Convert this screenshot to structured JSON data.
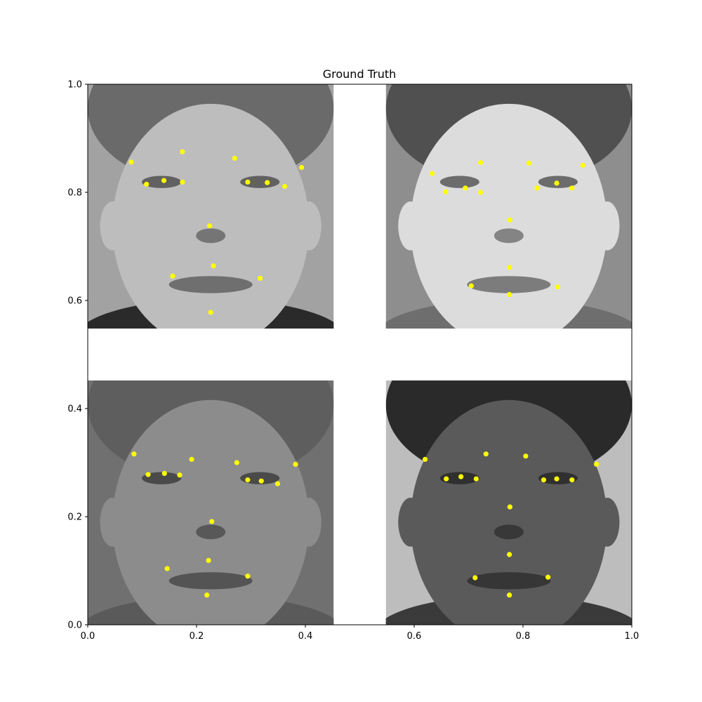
{
  "chart_data": {
    "type": "scatter",
    "title": "Ground Truth",
    "xlabel": "",
    "ylabel": "",
    "xlim": [
      0.0,
      1.0
    ],
    "ylim": [
      0.0,
      1.0
    ],
    "x_ticks": [
      "0.0",
      "0.2",
      "0.4",
      "0.6",
      "0.8",
      "1.0"
    ],
    "y_ticks": [
      "0.0",
      "0.2",
      "0.4",
      "0.6",
      "0.8",
      "1.0"
    ],
    "grid": false,
    "marker_color": "#ffff00",
    "panels": [
      {
        "name": "top-left-face",
        "xlim": [
          0.0,
          0.452
        ],
        "ylim": [
          0.548,
          1.0
        ],
        "palette": {
          "bg": "#a2a2a2",
          "skin": "#bdbdbd",
          "hair": "#6a6a6a",
          "feature": "#3a3a3a",
          "clothing": "#2a2a2a"
        },
        "points": [
          {
            "x": 0.08,
            "y": 0.856
          },
          {
            "x": 0.174,
            "y": 0.875
          },
          {
            "x": 0.108,
            "y": 0.815
          },
          {
            "x": 0.14,
            "y": 0.822
          },
          {
            "x": 0.174,
            "y": 0.819
          },
          {
            "x": 0.27,
            "y": 0.863
          },
          {
            "x": 0.393,
            "y": 0.846
          },
          {
            "x": 0.294,
            "y": 0.819
          },
          {
            "x": 0.33,
            "y": 0.818
          },
          {
            "x": 0.362,
            "y": 0.811
          },
          {
            "x": 0.224,
            "y": 0.738
          },
          {
            "x": 0.231,
            "y": 0.664
          },
          {
            "x": 0.156,
            "y": 0.645
          },
          {
            "x": 0.317,
            "y": 0.641
          },
          {
            "x": 0.226,
            "y": 0.578
          }
        ]
      },
      {
        "name": "top-right-face",
        "xlim": [
          0.548,
          1.0
        ],
        "ylim": [
          0.548,
          1.0
        ],
        "palette": {
          "bg": "#8e8e8e",
          "skin": "#dcdcdc",
          "hair": "#505050",
          "feature": "#3c3c3c",
          "clothing": "#6e6e6e"
        },
        "points": [
          {
            "x": 0.633,
            "y": 0.835
          },
          {
            "x": 0.722,
            "y": 0.855
          },
          {
            "x": 0.658,
            "y": 0.801
          },
          {
            "x": 0.694,
            "y": 0.808
          },
          {
            "x": 0.722,
            "y": 0.8
          },
          {
            "x": 0.811,
            "y": 0.854
          },
          {
            "x": 0.91,
            "y": 0.85
          },
          {
            "x": 0.826,
            "y": 0.808
          },
          {
            "x": 0.862,
            "y": 0.817
          },
          {
            "x": 0.89,
            "y": 0.808
          },
          {
            "x": 0.776,
            "y": 0.749
          },
          {
            "x": 0.775,
            "y": 0.661
          },
          {
            "x": 0.705,
            "y": 0.627
          },
          {
            "x": 0.864,
            "y": 0.625
          },
          {
            "x": 0.775,
            "y": 0.611
          }
        ]
      },
      {
        "name": "bottom-left-face",
        "xlim": [
          0.0,
          0.452
        ],
        "ylim": [
          0.0,
          0.452
        ],
        "palette": {
          "bg": "#707070",
          "skin": "#8c8c8c",
          "hair": "#5e5e5e",
          "feature": "#2e2e2e",
          "clothing": "#5a5a5a"
        },
        "points": [
          {
            "x": 0.085,
            "y": 0.316
          },
          {
            "x": 0.191,
            "y": 0.306
          },
          {
            "x": 0.111,
            "y": 0.278
          },
          {
            "x": 0.141,
            "y": 0.28
          },
          {
            "x": 0.169,
            "y": 0.277
          },
          {
            "x": 0.274,
            "y": 0.3
          },
          {
            "x": 0.382,
            "y": 0.297
          },
          {
            "x": 0.294,
            "y": 0.268
          },
          {
            "x": 0.319,
            "y": 0.266
          },
          {
            "x": 0.349,
            "y": 0.261
          },
          {
            "x": 0.228,
            "y": 0.191
          },
          {
            "x": 0.222,
            "y": 0.119
          },
          {
            "x": 0.146,
            "y": 0.104
          },
          {
            "x": 0.294,
            "y": 0.09
          },
          {
            "x": 0.219,
            "y": 0.055
          }
        ]
      },
      {
        "name": "bottom-right-face",
        "xlim": [
          0.548,
          1.0
        ],
        "ylim": [
          0.0,
          0.452
        ],
        "palette": {
          "bg": "#bdbdbd",
          "skin": "#5a5a5a",
          "hair": "#2a2a2a",
          "feature": "#1e1e1e",
          "clothing": "#3a3a3a"
        },
        "points": [
          {
            "x": 0.62,
            "y": 0.306
          },
          {
            "x": 0.732,
            "y": 0.316
          },
          {
            "x": 0.659,
            "y": 0.27
          },
          {
            "x": 0.686,
            "y": 0.274
          },
          {
            "x": 0.714,
            "y": 0.27
          },
          {
            "x": 0.805,
            "y": 0.312
          },
          {
            "x": 0.935,
            "y": 0.297
          },
          {
            "x": 0.838,
            "y": 0.268
          },
          {
            "x": 0.862,
            "y": 0.27
          },
          {
            "x": 0.89,
            "y": 0.268
          },
          {
            "x": 0.776,
            "y": 0.218
          },
          {
            "x": 0.775,
            "y": 0.13
          },
          {
            "x": 0.712,
            "y": 0.087
          },
          {
            "x": 0.846,
            "y": 0.088
          },
          {
            "x": 0.775,
            "y": 0.055
          }
        ]
      }
    ]
  }
}
